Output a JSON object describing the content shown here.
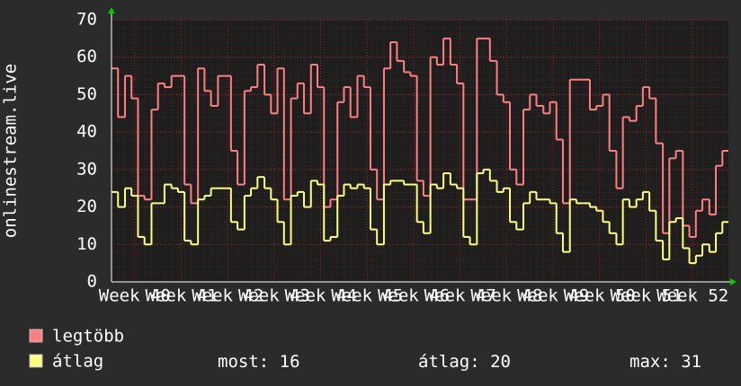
{
  "chart_data": {
    "type": "step",
    "ylabel": "onlinestream.live",
    "x": [
      39.5,
      39.64,
      39.79,
      39.93,
      40.07,
      40.21,
      40.36,
      40.5,
      40.64,
      40.79,
      40.93,
      41.07,
      41.21,
      41.36,
      41.5,
      41.64,
      41.79,
      41.93,
      42.07,
      42.21,
      42.36,
      42.5,
      42.64,
      42.79,
      42.93,
      43.07,
      43.21,
      43.36,
      43.5,
      43.64,
      43.79,
      43.93,
      44.07,
      44.21,
      44.36,
      44.5,
      44.64,
      44.79,
      44.93,
      45.07,
      45.21,
      45.36,
      45.5,
      45.64,
      45.79,
      45.93,
      46.07,
      46.21,
      46.36,
      46.5,
      46.64,
      46.79,
      46.93,
      47.07,
      47.21,
      47.36,
      47.5,
      47.64,
      47.79,
      47.93,
      48.07,
      48.21,
      48.36,
      48.5,
      48.64,
      48.79,
      48.93,
      49.07,
      49.21,
      49.36,
      49.5,
      49.64,
      49.79,
      49.93,
      50.07,
      50.21,
      50.36,
      50.5,
      50.64,
      50.79,
      50.93,
      51.07,
      51.21,
      51.36,
      51.5,
      51.64,
      51.79,
      51.93,
      52.07,
      52.21,
      52.36,
      52.5,
      52.64
    ],
    "series": [
      {
        "name": "legtöbb",
        "color": "#ff8080",
        "values": [
          57,
          44,
          55,
          49,
          23,
          22,
          46,
          53,
          52,
          55,
          55,
          26,
          21,
          57,
          51,
          47,
          55,
          55,
          35,
          26,
          51,
          52,
          58,
          50,
          45,
          57,
          22,
          49,
          53,
          45,
          58,
          52,
          20,
          22,
          48,
          52,
          44,
          55,
          52,
          30,
          22,
          57,
          64,
          59,
          56,
          55,
          27,
          23,
          60,
          58,
          65,
          58,
          53,
          22,
          22,
          65,
          65,
          59,
          50,
          48,
          30,
          26,
          46,
          50,
          47,
          45,
          48,
          38,
          21,
          54,
          54,
          54,
          46,
          47,
          50,
          35,
          25,
          44,
          43,
          47,
          52,
          49,
          37,
          13,
          33,
          35,
          15,
          12,
          19,
          22,
          18,
          31,
          35
        ]
      },
      {
        "name": "átlag",
        "color": "#ffff80",
        "values": [
          24,
          20,
          25,
          23,
          12,
          10,
          21,
          21,
          26,
          25,
          24,
          11,
          10,
          22,
          23,
          25,
          25,
          25,
          16,
          14,
          23,
          25,
          28,
          25,
          22,
          16,
          10,
          23,
          24,
          20,
          27,
          26,
          11,
          12,
          23,
          26,
          25,
          26,
          25,
          14,
          10,
          26,
          27,
          27,
          26,
          26,
          16,
          13,
          26,
          25,
          29,
          26,
          25,
          12,
          10,
          29,
          30,
          27,
          24,
          25,
          16,
          14,
          21,
          24,
          22,
          22,
          21,
          13,
          8,
          22,
          21,
          21,
          20,
          19,
          16,
          13,
          10,
          22,
          20,
          22,
          24,
          19,
          11,
          6,
          16,
          17,
          9,
          5,
          7,
          10,
          8,
          13,
          16
        ]
      }
    ],
    "xlim": [
      39.5,
      52.77
    ],
    "xticks": [
      {
        "value": 40,
        "label": "Week 40"
      },
      {
        "value": 41,
        "label": "Week 41"
      },
      {
        "value": 42,
        "label": "Week 42"
      },
      {
        "value": 43,
        "label": "Week 43"
      },
      {
        "value": 44,
        "label": "Week 44"
      },
      {
        "value": 45,
        "label": "Week 45"
      },
      {
        "value": 46,
        "label": "Week 46"
      },
      {
        "value": 47,
        "label": "Week 47"
      },
      {
        "value": 48,
        "label": "Week 48"
      },
      {
        "value": 49,
        "label": "Week 49"
      },
      {
        "value": 50,
        "label": "Week 50"
      },
      {
        "value": 51,
        "label": "Week 51"
      },
      {
        "value": 52,
        "label": "Week 52"
      }
    ],
    "ylim": [
      0,
      70
    ],
    "yticks": [
      0,
      10,
      20,
      30,
      40,
      50,
      60,
      70
    ],
    "grid": true,
    "stats": [
      {
        "label": "most:",
        "value": 16
      },
      {
        "label": "átlag:",
        "value": 20
      },
      {
        "label": "max:",
        "value": 31
      }
    ]
  }
}
